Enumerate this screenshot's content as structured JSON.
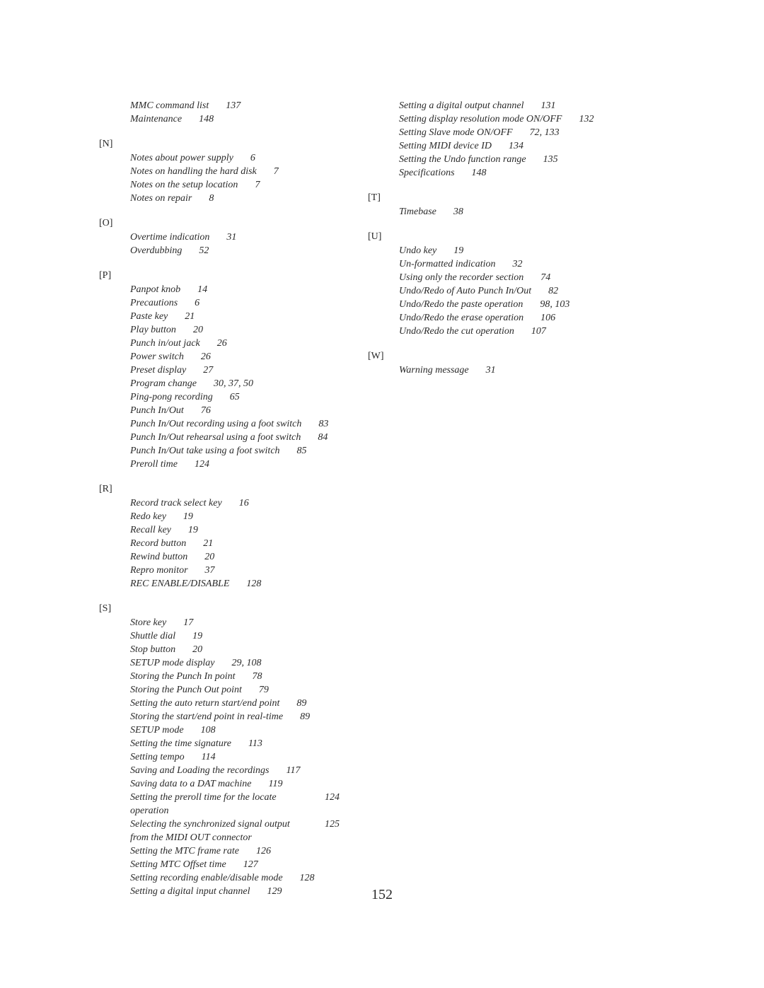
{
  "page_number": "152",
  "columns": [
    {
      "pre_items": [
        {
          "title": "MMC command list",
          "page": "137"
        },
        {
          "title": "Maintenance",
          "page": "148"
        }
      ],
      "sections": [
        {
          "letter": "[N]",
          "items": [
            {
              "title": "Notes about power supply",
              "page": "6"
            },
            {
              "title": "Notes on handling the hard disk",
              "page": "7"
            },
            {
              "title": "Notes on the setup location",
              "page": "7"
            },
            {
              "title": "Notes on repair",
              "page": "8"
            }
          ]
        },
        {
          "letter": "[O]",
          "items": [
            {
              "title": "Overtime indication",
              "page": "31"
            },
            {
              "title": "Overdubbing",
              "page": "52"
            }
          ]
        },
        {
          "letter": "[P]",
          "items": [
            {
              "title": "Panpot knob",
              "page": "14"
            },
            {
              "title": "Precautions",
              "page": "6"
            },
            {
              "title": "Paste key",
              "page": "21"
            },
            {
              "title": "Play button",
              "page": "20"
            },
            {
              "title": "Punch in/out jack",
              "page": "26"
            },
            {
              "title": "Power switch",
              "page": "26"
            },
            {
              "title": "Preset display",
              "page": "27"
            },
            {
              "title": "Program change",
              "page": "30, 37, 50"
            },
            {
              "title": "Ping-pong recording",
              "page": "65"
            },
            {
              "title": "Punch In/Out",
              "page": "76"
            },
            {
              "title": "Punch In/Out recording using a foot switch",
              "page": "83"
            },
            {
              "title": "Punch In/Out rehearsal using a foot switch",
              "page": "84"
            },
            {
              "title": "Punch In/Out take using a foot switch",
              "page": "85"
            },
            {
              "title": "Preroll time",
              "page": "124"
            }
          ]
        },
        {
          "letter": "[R]",
          "items": [
            {
              "title": "Record track select key",
              "page": "16"
            },
            {
              "title": "Redo key",
              "page": "19"
            },
            {
              "title": "Recall key",
              "page": "19"
            },
            {
              "title": "Record button",
              "page": "21"
            },
            {
              "title": "Rewind button",
              "page": "20"
            },
            {
              "title": "Repro monitor",
              "page": "37"
            },
            {
              "title": "REC ENABLE/DISABLE",
              "page": "128"
            }
          ]
        },
        {
          "letter": "[S]",
          "items": [
            {
              "title": "Store key",
              "page": "17"
            },
            {
              "title": "Shuttle dial",
              "page": "19"
            },
            {
              "title": "Stop button",
              "page": "20"
            },
            {
              "title": "SETUP mode display",
              "page": "29, 108"
            },
            {
              "title": "Storing the Punch In point",
              "page": "78"
            },
            {
              "title": "Storing the Punch Out point",
              "page": "79"
            },
            {
              "title": "Setting the auto return start/end point",
              "page": "89"
            },
            {
              "title": "Storing the start/end point in real-time",
              "page": "89"
            },
            {
              "title": "SETUP mode",
              "page": "108"
            },
            {
              "title": "Setting the time signature",
              "page": "113"
            },
            {
              "title": "Setting tempo",
              "page": "114"
            },
            {
              "title": "Saving and Loading the recordings",
              "page": "117"
            },
            {
              "title": "Saving data to a DAT machine",
              "page": "119"
            },
            {
              "title": "Setting the preroll time for the locate operation",
              "page": "124"
            },
            {
              "title": "Selecting the synchronized signal output from the MIDI OUT connector",
              "page": "125"
            },
            {
              "title": "Setting the MTC frame rate",
              "page": "126"
            },
            {
              "title": "Setting MTC Offset time",
              "page": "127"
            },
            {
              "title": "Setting recording enable/disable mode",
              "page": "128"
            },
            {
              "title": "Setting a digital input channel",
              "page": "129"
            }
          ]
        }
      ]
    },
    {
      "pre_items": [
        {
          "title": "Setting a digital output channel",
          "page": "131"
        },
        {
          "title": "Setting display resolution mode ON/OFF",
          "page": "132"
        },
        {
          "title": "Setting Slave mode ON/OFF",
          "page": "72, 133"
        },
        {
          "title": "Setting MIDI device ID",
          "page": "134"
        },
        {
          "title": "Setting the Undo function range",
          "page": "135"
        },
        {
          "title": "Specifications",
          "page": "148"
        }
      ],
      "sections": [
        {
          "letter": "[T]",
          "items": [
            {
              "title": "Timebase",
              "page": "38"
            }
          ]
        },
        {
          "letter": "[U]",
          "items": [
            {
              "title": "Undo key",
              "page": "19"
            },
            {
              "title": "Un-formatted indication",
              "page": "32"
            },
            {
              "title": "Using only the recorder section",
              "page": "74"
            },
            {
              "title": "Undo/Redo of Auto Punch In/Out",
              "page": "82"
            },
            {
              "title": "Undo/Redo the paste operation",
              "page": "98, 103"
            },
            {
              "title": "Undo/Redo the erase operation",
              "page": "106"
            },
            {
              "title": "Undo/Redo the cut operation",
              "page": "107"
            }
          ]
        },
        {
          "letter": "[W]",
          "items": [
            {
              "title": "Warning message",
              "page": "31"
            }
          ]
        }
      ]
    }
  ]
}
